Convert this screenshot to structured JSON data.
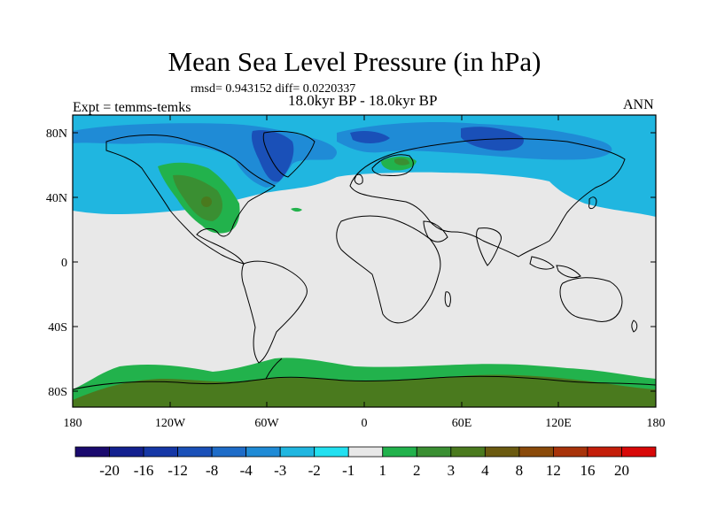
{
  "title": "Mean Sea Level Pressure (in hPa)",
  "stats_line": "rmsd= 0.943152 diff= 0.0220337",
  "period_label": "18.0kyr BP - 18.0kyr BP",
  "experiment_label": "Expt = temms-temks",
  "season_label": "ANN",
  "lat_ticks": [
    "80N",
    "40N",
    "0",
    "40S",
    "80S"
  ],
  "lon_ticks": [
    "180",
    "120W",
    "60W",
    "0",
    "60E",
    "120E",
    "180"
  ],
  "colorbar": {
    "colors": [
      "#1a0a6e",
      "#13208f",
      "#1537a6",
      "#1a50b8",
      "#1e6cc8",
      "#1f8bd6",
      "#20b6e0",
      "#22e0f0",
      "#e8e8e8",
      "#22b24c",
      "#3a8f32",
      "#4a7a1e",
      "#6b5a10",
      "#8a4a0a",
      "#a8330a",
      "#c41e0a",
      "#d80808"
    ],
    "labels": [
      "-20",
      "-16",
      "-12",
      "-8",
      "-4",
      "-3",
      "-2",
      "-1",
      "1",
      "2",
      "3",
      "4",
      "8",
      "12",
      "16",
      "20"
    ]
  },
  "chart_data": {
    "type": "heatmap",
    "title": "Mean Sea Level Pressure (in hPa)",
    "xlim": [
      -180,
      180
    ],
    "ylim": [
      -90,
      90
    ],
    "x_ticks": [
      "180",
      "120W",
      "60W",
      "0",
      "60E",
      "120E",
      "180"
    ],
    "y_ticks": [
      "80N",
      "40N",
      "0",
      "40S",
      "80S"
    ],
    "levels": [
      -20,
      -16,
      -12,
      -8,
      -4,
      -3,
      -2,
      -1,
      1,
      2,
      3,
      4,
      8,
      12,
      16,
      20
    ],
    "rmsd": 0.943152,
    "diff": 0.0220337,
    "background": "#e8e8e8"
  }
}
